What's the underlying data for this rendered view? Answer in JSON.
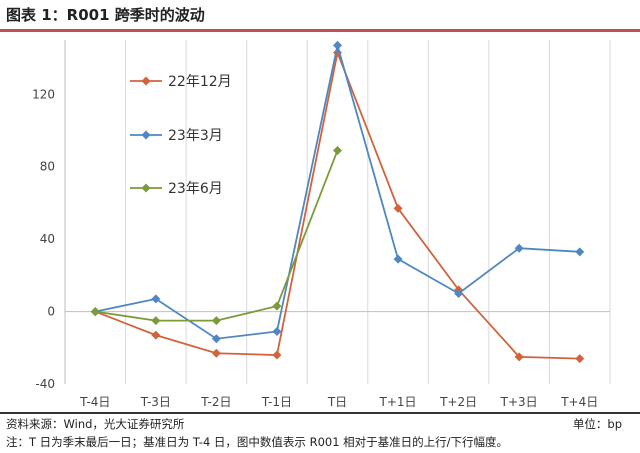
{
  "header": {
    "title": "图表 1：R001 跨季时的波动"
  },
  "chart_data": {
    "type": "line",
    "categories": [
      "T-4日",
      "T-3日",
      "T-2日",
      "T-1日",
      "T日",
      "T+1日",
      "T+2日",
      "T+3日",
      "T+4日"
    ],
    "ylim": [
      -40,
      150
    ],
    "yticks": [
      -40,
      0,
      40,
      80,
      120
    ],
    "grid": "vertical",
    "legend_position": "upper-left inside",
    "series": [
      {
        "name": "22年12月",
        "color": "#d2633c",
        "values": [
          0,
          -13,
          -23,
          -24,
          143,
          57,
          12,
          -25,
          -26
        ]
      },
      {
        "name": "23年3月",
        "color": "#4f87c0",
        "values": [
          0,
          7,
          -15,
          -11,
          147,
          29,
          10,
          35,
          33
        ]
      },
      {
        "name": "23年6月",
        "color": "#7d9a3a",
        "values": [
          0,
          -5,
          -5,
          3,
          89,
          null,
          null,
          null,
          null
        ]
      }
    ]
  },
  "footer": {
    "source": "资料来源：Wind，光大证券研究所",
    "unit": "单位：bp",
    "note": "注：T 日为季末最后一日；基准日为 T-4 日，图中数值表示 R001 相对于基准日的上行/下行幅度。"
  }
}
